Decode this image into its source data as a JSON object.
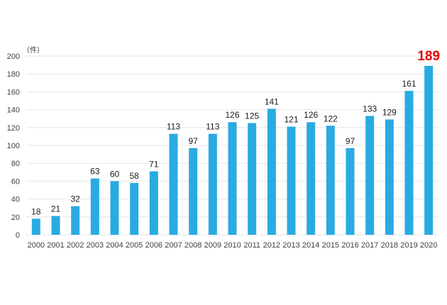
{
  "chart_data": {
    "type": "bar",
    "ylabel": "（件）",
    "xlabel": "",
    "ylim": [
      0,
      200
    ],
    "yticks": [
      0,
      20,
      40,
      60,
      80,
      100,
      120,
      140,
      160,
      180,
      200
    ],
    "grid": true,
    "categories": [
      "2000",
      "2001",
      "2002",
      "2003",
      "2004",
      "2005",
      "2006",
      "2007",
      "2008",
      "2009",
      "2010",
      "2011",
      "2012",
      "2013",
      "2014",
      "2015",
      "2016",
      "2017",
      "2018",
      "2019",
      "2020"
    ],
    "values": [
      18,
      21,
      32,
      63,
      60,
      58,
      71,
      113,
      97,
      113,
      126,
      125,
      141,
      121,
      126,
      122,
      97,
      133,
      129,
      161,
      189
    ],
    "highlight_index": 20,
    "colors": {
      "bar": "#29abe2",
      "highlight_label": "#e00000",
      "grid": "#e6e6e6",
      "text": "#404040"
    }
  }
}
